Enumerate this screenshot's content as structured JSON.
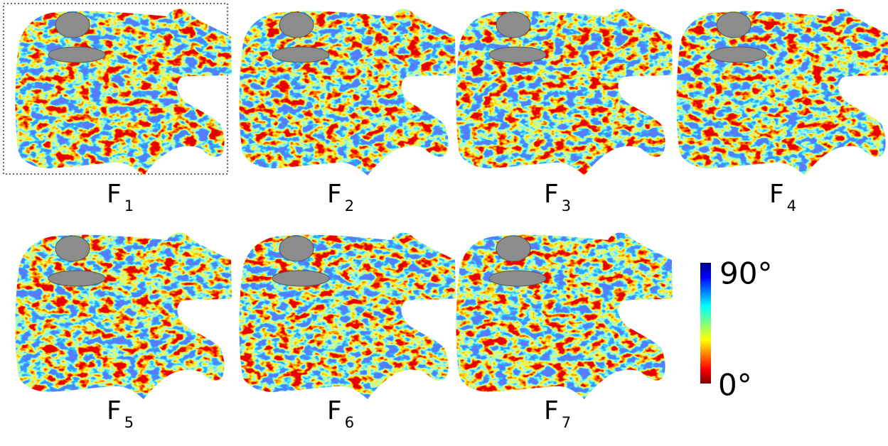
{
  "panels": [
    {
      "label": "F",
      "sub": "1"
    },
    {
      "label": "F",
      "sub": "2"
    },
    {
      "label": "F",
      "sub": "3"
    },
    {
      "label": "F",
      "sub": "4"
    },
    {
      "label": "F",
      "sub": "5"
    },
    {
      "label": "F",
      "sub": "6"
    },
    {
      "label": "F",
      "sub": "7"
    }
  ],
  "colorbar": {
    "top_label": "90°",
    "bottom_label": "0°"
  }
}
